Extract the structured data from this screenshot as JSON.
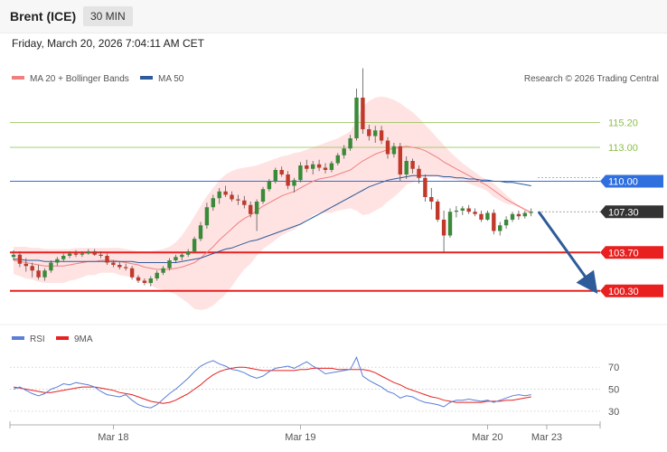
{
  "header": {
    "instrument": "Brent (ICE)",
    "timeframe": "30 MIN",
    "datetime": "Friday, March 20, 2026 7:04:11 AM CET"
  },
  "colors": {
    "bull": "#3a8a3a",
    "bear": "#c0392b",
    "ma20": "#f08080",
    "ma50": "#2e5b9a",
    "band": "#ffdada",
    "resistance": "#8cbf4a",
    "pivot": "#2f6fde",
    "support": "#e82020",
    "last": "#333333",
    "arrow": "#2e5b9a",
    "rsi": "#5a7fd6",
    "rsi_ma": "#e82020"
  },
  "chart_data": [
    {
      "type": "candlestick",
      "title": "",
      "legend": [
        {
          "label": "MA 20 + Bollinger Bands",
          "color": "#f08080"
        },
        {
          "label": "MA 50",
          "color": "#2e5b9a"
        }
      ],
      "credit": "Research © 2026 Trading Central",
      "ylim": [
        96.6,
        120.6
      ],
      "x_ticks": [
        "Mar 18",
        "Mar 19",
        "Mar 20",
        "Mar 23"
      ],
      "levels": [
        {
          "value": 115.2,
          "label": "115.20",
          "role": "resistance-2"
        },
        {
          "value": 113.0,
          "label": "113.00",
          "role": "resistance-1"
        },
        {
          "value": 110.0,
          "label": "110.00",
          "role": "pivot"
        },
        {
          "value": 107.3,
          "label": "107.30",
          "role": "last-price"
        },
        {
          "value": 103.7,
          "label": "103.70",
          "role": "support-1"
        },
        {
          "value": 100.3,
          "label": "100.30",
          "role": "support-2"
        }
      ],
      "forecast_arrow": {
        "from": 107.3,
        "to": 100.3,
        "direction": "down"
      },
      "ohlc": [
        [
          103.3,
          103.9,
          103.0,
          103.5
        ],
        [
          103.5,
          103.8,
          102.4,
          102.7
        ],
        [
          102.7,
          103.2,
          102.0,
          102.5
        ],
        [
          102.5,
          102.8,
          101.5,
          102.1
        ],
        [
          102.1,
          102.6,
          101.3,
          101.5
        ],
        [
          101.5,
          102.3,
          101.2,
          102.1
        ],
        [
          102.1,
          103.0,
          101.9,
          102.8
        ],
        [
          102.8,
          103.3,
          102.5,
          103.1
        ],
        [
          103.1,
          103.6,
          102.9,
          103.4
        ],
        [
          103.4,
          103.8,
          103.2,
          103.6
        ],
        [
          103.6,
          103.9,
          103.3,
          103.5
        ],
        [
          103.5,
          103.8,
          103.3,
          103.6
        ],
        [
          103.6,
          104.0,
          103.5,
          103.8
        ],
        [
          103.8,
          104.0,
          103.4,
          103.5
        ],
        [
          103.5,
          103.8,
          103.2,
          103.4
        ],
        [
          103.4,
          103.6,
          102.6,
          102.8
        ],
        [
          102.8,
          103.0,
          102.4,
          102.6
        ],
        [
          102.6,
          102.9,
          102.2,
          102.4
        ],
        [
          102.4,
          102.7,
          102.1,
          102.3
        ],
        [
          102.3,
          102.5,
          101.3,
          101.5
        ],
        [
          101.5,
          101.7,
          101.0,
          101.2
        ],
        [
          101.2,
          101.4,
          100.8,
          101.0
        ],
        [
          101.0,
          101.6,
          100.7,
          101.4
        ],
        [
          101.4,
          102.1,
          101.2,
          101.9
        ],
        [
          101.9,
          102.5,
          101.7,
          102.3
        ],
        [
          102.3,
          103.2,
          102.1,
          103.0
        ],
        [
          103.0,
          103.5,
          102.8,
          103.3
        ],
        [
          103.3,
          103.7,
          103.0,
          103.5
        ],
        [
          103.5,
          104.0,
          103.3,
          103.8
        ],
        [
          103.8,
          105.1,
          103.7,
          104.9
        ],
        [
          104.9,
          106.4,
          104.7,
          106.1
        ],
        [
          106.1,
          108.1,
          105.8,
          107.7
        ],
        [
          107.7,
          108.8,
          107.4,
          108.5
        ],
        [
          108.5,
          109.4,
          108.0,
          109.1
        ],
        [
          109.1,
          109.6,
          108.6,
          108.8
        ],
        [
          108.8,
          109.1,
          108.2,
          108.4
        ],
        [
          108.4,
          108.8,
          107.9,
          108.3
        ],
        [
          108.3,
          108.7,
          107.6,
          107.9
        ],
        [
          107.9,
          108.2,
          106.8,
          107.1
        ],
        [
          107.1,
          108.4,
          105.6,
          108.2
        ],
        [
          108.2,
          109.5,
          108.0,
          109.3
        ],
        [
          109.3,
          110.2,
          109.1,
          110.0
        ],
        [
          110.0,
          111.2,
          109.8,
          111.0
        ],
        [
          111.0,
          111.3,
          110.4,
          110.6
        ],
        [
          110.6,
          110.9,
          109.3,
          109.6
        ],
        [
          109.6,
          110.3,
          109.0,
          110.1
        ],
        [
          110.1,
          111.7,
          109.9,
          111.4
        ],
        [
          111.4,
          111.9,
          110.8,
          111.1
        ],
        [
          111.1,
          111.8,
          110.6,
          111.5
        ],
        [
          111.5,
          111.9,
          110.9,
          111.2
        ],
        [
          111.2,
          111.6,
          110.7,
          111.0
        ],
        [
          111.0,
          111.8,
          110.8,
          111.6
        ],
        [
          111.6,
          112.5,
          111.4,
          112.3
        ],
        [
          112.3,
          113.2,
          112.0,
          112.9
        ],
        [
          112.9,
          114.1,
          112.7,
          113.8
        ],
        [
          113.8,
          118.2,
          113.6,
          117.4
        ],
        [
          117.4,
          120.0,
          114.2,
          114.6
        ],
        [
          114.6,
          115.0,
          113.6,
          114.0
        ],
        [
          114.0,
          114.9,
          113.4,
          114.5
        ],
        [
          114.5,
          114.9,
          113.3,
          113.6
        ],
        [
          113.6,
          113.9,
          112.0,
          112.4
        ],
        [
          112.4,
          113.4,
          112.1,
          113.1
        ],
        [
          113.1,
          113.4,
          110.0,
          110.6
        ],
        [
          110.6,
          112.2,
          110.2,
          111.8
        ],
        [
          111.8,
          112.0,
          110.7,
          111.1
        ],
        [
          111.1,
          111.4,
          109.8,
          110.3
        ],
        [
          110.3,
          110.6,
          108.2,
          108.6
        ],
        [
          108.6,
          109.4,
          107.5,
          108.2
        ],
        [
          108.2,
          108.4,
          106.4,
          106.6
        ],
        [
          106.6,
          107.4,
          103.7,
          105.2
        ],
        [
          105.2,
          107.6,
          105.0,
          107.3
        ],
        [
          107.3,
          107.8,
          106.8,
          107.4
        ],
        [
          107.4,
          107.8,
          107.0,
          107.6
        ],
        [
          107.6,
          107.9,
          107.1,
          107.3
        ],
        [
          107.3,
          107.6,
          106.9,
          107.1
        ],
        [
          107.1,
          107.4,
          106.4,
          106.6
        ],
        [
          106.6,
          107.4,
          106.5,
          107.2
        ],
        [
          107.2,
          107.5,
          105.3,
          105.6
        ],
        [
          105.6,
          106.4,
          105.2,
          106.1
        ],
        [
          106.1,
          106.9,
          105.8,
          106.6
        ],
        [
          106.6,
          107.3,
          106.4,
          107.1
        ],
        [
          107.1,
          107.4,
          106.6,
          106.9
        ],
        [
          106.9,
          107.4,
          106.7,
          107.2
        ],
        [
          107.2,
          107.6,
          106.9,
          107.3
        ]
      ],
      "ma20": [
        103.0,
        102.9,
        102.8,
        102.7,
        102.6,
        102.5,
        102.5,
        102.5,
        102.5,
        102.6,
        102.7,
        102.8,
        102.9,
        102.9,
        103.0,
        103.0,
        103.0,
        102.9,
        102.8,
        102.7,
        102.6,
        102.4,
        102.3,
        102.2,
        102.2,
        102.2,
        102.3,
        102.4,
        102.6,
        102.8,
        103.2,
        103.7,
        104.2,
        104.8,
        105.3,
        105.8,
        106.3,
        106.7,
        107.0,
        107.4,
        107.8,
        108.1,
        108.4,
        108.7,
        108.9,
        109.1,
        109.4,
        109.7,
        110.0,
        110.2,
        110.3,
        110.4,
        110.6,
        110.8,
        111.0,
        111.4,
        111.8,
        112.1,
        112.4,
        112.6,
        112.8,
        112.9,
        113.0,
        113.1,
        113.0,
        112.9,
        112.7,
        112.4,
        112.1,
        111.7,
        111.4,
        111.1,
        110.8,
        110.5,
        110.2,
        109.9,
        109.6,
        109.2,
        108.8,
        108.4,
        108.1,
        107.8,
        107.5,
        107.2
      ],
      "bb_upper": [
        104.2,
        104.2,
        104.2,
        104.1,
        104.1,
        104.0,
        104.0,
        104.0,
        104.0,
        104.0,
        104.1,
        104.1,
        104.1,
        104.1,
        104.1,
        104.1,
        104.1,
        104.1,
        104.0,
        103.9,
        103.8,
        103.8,
        103.8,
        103.9,
        104.0,
        104.2,
        104.6,
        105.2,
        106.0,
        106.9,
        107.8,
        108.7,
        109.4,
        110.1,
        110.6,
        110.9,
        111.1,
        111.2,
        111.3,
        111.4,
        111.6,
        111.8,
        112.0,
        112.2,
        112.3,
        112.5,
        112.6,
        112.8,
        113.0,
        113.2,
        113.4,
        113.6,
        113.8,
        114.1,
        114.4,
        115.4,
        116.6,
        117.1,
        117.4,
        117.5,
        117.4,
        117.2,
        116.9,
        116.5,
        116.1,
        115.6,
        115.0,
        114.4,
        113.8,
        113.2,
        112.6,
        112.1,
        111.6,
        111.2,
        110.8,
        110.4,
        110.1,
        109.8,
        109.3,
        108.8,
        108.3,
        107.9,
        107.6,
        107.4
      ],
      "bb_lower": [
        101.8,
        101.6,
        101.4,
        101.3,
        101.1,
        101.0,
        101.0,
        101.0,
        101.0,
        101.2,
        101.3,
        101.5,
        101.7,
        101.7,
        101.9,
        101.9,
        101.9,
        101.7,
        101.6,
        101.5,
        101.4,
        101.0,
        100.8,
        100.5,
        100.4,
        100.2,
        100.0,
        99.6,
        99.2,
        98.7,
        98.6,
        98.7,
        99.0,
        99.5,
        100.0,
        100.7,
        101.5,
        102.2,
        102.7,
        103.4,
        104.0,
        104.4,
        104.8,
        105.2,
        105.5,
        105.7,
        106.2,
        106.6,
        107.0,
        107.2,
        107.2,
        107.2,
        107.4,
        107.5,
        107.6,
        107.4,
        107.0,
        107.1,
        107.4,
        107.7,
        108.2,
        108.6,
        109.1,
        109.7,
        109.9,
        110.2,
        110.4,
        110.4,
        110.4,
        110.2,
        110.2,
        110.1,
        110.0,
        109.8,
        109.6,
        109.4,
        109.1,
        108.6,
        108.3,
        108.0,
        107.9,
        107.7,
        107.4,
        107.0
      ],
      "ma50": [
        103.1,
        103.1,
        103.0,
        103.0,
        103.0,
        102.9,
        102.9,
        102.9,
        102.9,
        102.9,
        102.9,
        102.9,
        102.9,
        102.9,
        102.9,
        102.9,
        102.9,
        102.9,
        102.9,
        102.9,
        102.8,
        102.8,
        102.8,
        102.8,
        102.8,
        102.8,
        102.8,
        102.9,
        103.0,
        103.1,
        103.2,
        103.4,
        103.6,
        103.8,
        104.0,
        104.1,
        104.3,
        104.5,
        104.7,
        104.8,
        105.0,
        105.2,
        105.4,
        105.6,
        105.8,
        106.0,
        106.2,
        106.5,
        106.8,
        107.1,
        107.4,
        107.7,
        108.0,
        108.3,
        108.6,
        108.9,
        109.2,
        109.5,
        109.7,
        109.9,
        110.1,
        110.2,
        110.3,
        110.4,
        110.5,
        110.5,
        110.5,
        110.5,
        110.5,
        110.4,
        110.4,
        110.3,
        110.3,
        110.2,
        110.2,
        110.1,
        110.1,
        110.0,
        110.0,
        109.9,
        109.9,
        109.8,
        109.7,
        109.6
      ]
    },
    {
      "type": "line",
      "title": "",
      "legend": [
        {
          "label": "RSI",
          "color": "#5a7fd6"
        },
        {
          "label": "9MA",
          "color": "#e82020"
        }
      ],
      "ylim": [
        20,
        85
      ],
      "y_ticks": [
        70,
        50,
        30
      ],
      "series": [
        {
          "name": "RSI",
          "values": [
            50,
            52,
            49,
            46,
            44,
            46,
            50,
            52,
            55,
            54,
            56,
            55,
            54,
            52,
            48,
            45,
            44,
            43,
            45,
            40,
            36,
            34,
            33,
            36,
            41,
            46,
            50,
            55,
            60,
            66,
            71,
            74,
            76,
            73,
            71,
            68,
            67,
            65,
            62,
            60,
            62,
            66,
            69,
            70,
            71,
            69,
            72,
            75,
            71,
            68,
            64,
            65,
            66,
            67,
            68,
            79,
            62,
            58,
            55,
            52,
            48,
            46,
            42,
            44,
            43,
            40,
            38,
            37,
            36,
            34,
            38,
            40,
            40,
            41,
            40,
            39,
            40,
            38,
            40,
            42,
            44,
            45,
            44,
            45
          ]
        },
        {
          "name": "9MA",
          "values": [
            52,
            51,
            50,
            49,
            48,
            47,
            47,
            48,
            49,
            50,
            51,
            52,
            52,
            52,
            51,
            50,
            49,
            47,
            46,
            45,
            43,
            41,
            39,
            38,
            37,
            38,
            40,
            43,
            46,
            50,
            54,
            59,
            63,
            66,
            68,
            69,
            70,
            70,
            69,
            68,
            67,
            67,
            67,
            67,
            67,
            67,
            68,
            68,
            69,
            69,
            69,
            69,
            68,
            68,
            68,
            68,
            68,
            67,
            65,
            62,
            59,
            56,
            54,
            51,
            49,
            47,
            45,
            43,
            42,
            40,
            39,
            38,
            38,
            38,
            38,
            38,
            39,
            39,
            39,
            40,
            40,
            41,
            42,
            43
          ]
        }
      ]
    }
  ]
}
